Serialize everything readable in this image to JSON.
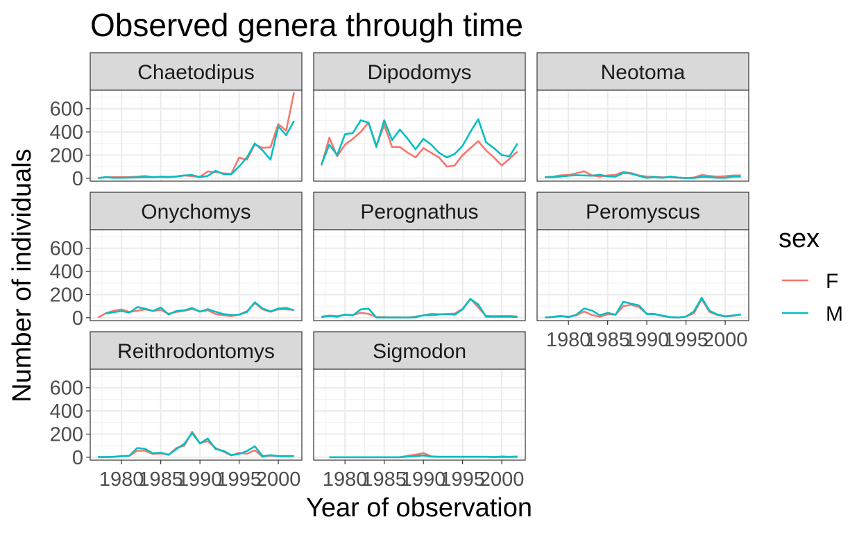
{
  "chart_data": {
    "type": "line",
    "title": "Observed genera through time",
    "xlabel": "Year of observation",
    "ylabel": "Number of individuals",
    "xlim": [
      1976,
      2003
    ],
    "ylim": [
      -25,
      760
    ],
    "x_ticks": [
      1980,
      1985,
      1990,
      1995,
      2000
    ],
    "x_tick_labels": [
      "1980",
      "1985",
      "1990",
      "1995",
      "2000"
    ],
    "y_ticks": [
      0,
      200,
      400,
      600
    ],
    "y_tick_labels": [
      "0",
      "200",
      "400",
      "600"
    ],
    "grid": true,
    "legend": {
      "title": "sex",
      "position": "right",
      "entries": [
        {
          "label": "F",
          "color": "#F8766D"
        },
        {
          "label": "M",
          "color": "#00BFC4"
        }
      ]
    },
    "x": [
      1977,
      1978,
      1979,
      1980,
      1981,
      1982,
      1983,
      1984,
      1985,
      1986,
      1987,
      1988,
      1989,
      1990,
      1991,
      1992,
      1993,
      1994,
      1995,
      1996,
      1997,
      1998,
      1999,
      2000,
      2001,
      2002
    ],
    "panels": [
      {
        "name": "Chaetodipus",
        "series": [
          {
            "name": "F",
            "color": "#F8766D",
            "values": [
              2,
              8,
              10,
              10,
              10,
              14,
              20,
              10,
              14,
              12,
              14,
              24,
              18,
              12,
              58,
              54,
              42,
              38,
              178,
              160,
              292,
              262,
              268,
              468,
              410,
              740
            ]
          },
          {
            "name": "M",
            "color": "#00BFC4",
            "values": [
              2,
              10,
              4,
              4,
              6,
              8,
              10,
              10,
              12,
              10,
              16,
              24,
              28,
              10,
              20,
              64,
              36,
              34,
              102,
              180,
              300,
              240,
              160,
              448,
              372,
              494
            ]
          }
        ]
      },
      {
        "name": "Dipodomys",
        "series": [
          {
            "name": "F",
            "color": "#F8766D",
            "values": [
              110,
              350,
              190,
              290,
              340,
              400,
              480,
              280,
              460,
              270,
              270,
              220,
              180,
              260,
              220,
              180,
              100,
              110,
              200,
              260,
              320,
              240,
              180,
              110,
              170,
              230
            ]
          },
          {
            "name": "M",
            "color": "#00BFC4",
            "values": [
              120,
              290,
              200,
              380,
              390,
              500,
              480,
              270,
              500,
              330,
              420,
              340,
              250,
              340,
              290,
              220,
              180,
              210,
              280,
              400,
              510,
              310,
              260,
              200,
              190,
              300
            ]
          }
        ]
      },
      {
        "name": "Neotoma",
        "series": [
          {
            "name": "F",
            "color": "#F8766D",
            "values": [
              10,
              14,
              25,
              28,
              42,
              60,
              25,
              14,
              24,
              30,
              54,
              44,
              24,
              14,
              12,
              8,
              10,
              4,
              2,
              6,
              28,
              20,
              14,
              18,
              24,
              24
            ]
          },
          {
            "name": "M",
            "color": "#00BFC4",
            "values": [
              8,
              10,
              14,
              22,
              26,
              24,
              22,
              30,
              16,
              14,
              46,
              40,
              20,
              4,
              10,
              4,
              14,
              6,
              2,
              2,
              12,
              10,
              4,
              4,
              14,
              14
            ]
          }
        ]
      },
      {
        "name": "Onychomys",
        "series": [
          {
            "name": "F",
            "color": "#F8766D",
            "values": [
              2,
              40,
              60,
              72,
              50,
              60,
              72,
              58,
              68,
              34,
              50,
              60,
              75,
              54,
              64,
              32,
              22,
              14,
              28,
              56,
              128,
              72,
              52,
              72,
              72,
              68
            ]
          },
          {
            "name": "M",
            "color": "#00BFC4",
            "values": [
              null,
              36,
              48,
              58,
              44,
              92,
              78,
              58,
              88,
              28,
              58,
              64,
              84,
              52,
              74,
              52,
              32,
              24,
              26,
              50,
              134,
              80,
              54,
              80,
              84,
              64
            ]
          }
        ]
      },
      {
        "name": "Perognathus",
        "series": [
          {
            "name": "F",
            "color": "#F8766D",
            "values": [
              10,
              18,
              14,
              26,
              24,
              42,
              34,
              6,
              6,
              4,
              4,
              2,
              10,
              20,
              34,
              30,
              32,
              36,
              76,
              164,
              90,
              16,
              14,
              16,
              16,
              10
            ]
          },
          {
            "name": "M",
            "color": "#00BFC4",
            "values": [
              6,
              14,
              8,
              28,
              20,
              72,
              78,
              2,
              2,
              2,
              2,
              2,
              4,
              22,
              22,
              28,
              32,
              26,
              72,
              162,
              114,
              8,
              8,
              8,
              8,
              6
            ]
          }
        ]
      },
      {
        "name": "Peromyscus",
        "series": [
          {
            "name": "F",
            "color": "#F8766D",
            "values": [
              2,
              6,
              12,
              10,
              20,
              54,
              24,
              8,
              30,
              26,
              100,
              112,
              92,
              34,
              34,
              14,
              4,
              2,
              10,
              38,
              160,
              50,
              24,
              10,
              16,
              30
            ]
          },
          {
            "name": "M",
            "color": "#00BFC4",
            "values": [
              2,
              8,
              16,
              4,
              26,
              80,
              62,
              22,
              42,
              26,
              138,
              122,
              106,
              32,
              30,
              18,
              6,
              2,
              10,
              54,
              172,
              60,
              28,
              12,
              20,
              28
            ]
          }
        ]
      },
      {
        "name": "Reithrodontomys",
        "series": [
          {
            "name": "F",
            "color": "#F8766D",
            "values": [
              2,
              2,
              4,
              8,
              12,
              56,
              56,
              28,
              34,
              20,
              80,
              100,
              220,
              120,
              140,
              80,
              48,
              16,
              38,
              30,
              60,
              4,
              14,
              8,
              8,
              10
            ]
          },
          {
            "name": "M",
            "color": "#00BFC4",
            "values": [
              2,
              2,
              4,
              10,
              14,
              80,
              72,
              34,
              40,
              22,
              70,
              116,
              208,
              120,
              162,
              70,
              56,
              18,
              28,
              54,
              94,
              10,
              18,
              10,
              10,
              10
            ]
          }
        ]
      },
      {
        "name": "Sigmodon",
        "series": [
          {
            "name": "F",
            "color": "#F8766D",
            "values": [
              null,
              0,
              0,
              0,
              0,
              0,
              0,
              0,
              0,
              0,
              0,
              12,
              22,
              36,
              8,
              4,
              4,
              4,
              4,
              4,
              4,
              4,
              2,
              2,
              2,
              2
            ]
          },
          {
            "name": "M",
            "color": "#00BFC4",
            "values": [
              null,
              0,
              0,
              0,
              0,
              0,
              0,
              0,
              0,
              0,
              0,
              6,
              10,
              16,
              6,
              4,
              4,
              4,
              4,
              4,
              4,
              4,
              2,
              6,
              4,
              6
            ]
          }
        ]
      }
    ]
  }
}
